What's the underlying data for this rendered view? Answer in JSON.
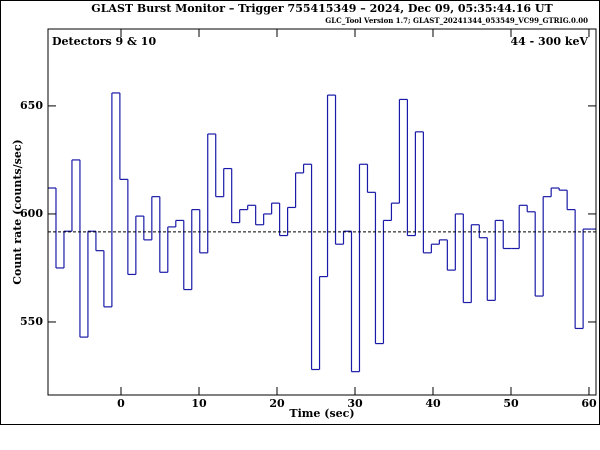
{
  "chart_data": {
    "type": "histogram",
    "title": "GLAST Burst Monitor  –  Trigger 755415349  –  2024, Dec 09, 05:35:44.16 UT",
    "subtitle": "GLC_Tool Version 1.7; GLAST_20241344_053549_VC99_GTRIG.0.00",
    "annotations": [
      "Detectors 9 & 10",
      "44 - 300 keV"
    ],
    "xlabel": "Time (sec)",
    "ylabel": "Count rate (counts/sec)",
    "color": "#1a1aa8",
    "background_level": 591.7,
    "bins": [
      -9.36,
      -8.336,
      -7.312,
      -6.288,
      -5.264,
      -4.24,
      -3.216,
      -2.192,
      -1.168,
      -0.144,
      0.88,
      1.904,
      2.928,
      3.952,
      4.976,
      6.0,
      7.024,
      8.048,
      9.072,
      10.096,
      11.12,
      12.144,
      13.168,
      14.192,
      15.216,
      16.24,
      17.264,
      18.288,
      19.312,
      20.336,
      21.36,
      22.384,
      23.408,
      24.432,
      25.456,
      26.48,
      27.504,
      28.528,
      29.552,
      30.576,
      31.6,
      32.624,
      33.648,
      34.672,
      35.696,
      36.72,
      37.744,
      38.768,
      39.792,
      40.816,
      41.84,
      42.864,
      43.888,
      44.912,
      45.936,
      46.96,
      47.984,
      49.008,
      50.032,
      51.056,
      52.08,
      53.104,
      54.128,
      55.152,
      56.176,
      57.2,
      58.224,
      59.248,
      60.272,
      61.296
    ],
    "values": [
      612,
      575,
      592,
      625,
      543,
      592,
      583,
      557,
      656,
      616,
      572,
      599,
      588,
      608,
      573,
      594,
      597,
      565,
      602,
      582,
      637,
      608,
      621,
      596,
      602,
      604,
      595,
      600,
      605,
      590,
      603,
      619,
      623,
      528,
      571,
      655,
      586,
      592,
      527,
      623,
      610,
      540,
      597,
      605,
      653,
      590,
      638,
      582,
      586,
      588,
      574,
      600,
      559,
      595,
      589,
      560,
      597,
      584,
      584,
      604,
      601,
      562,
      608,
      612,
      611,
      602,
      547,
      593,
      593
    ],
    "xlim": [
      -9.36,
      60.9
    ],
    "ylim": [
      516.2,
      685.6
    ],
    "xticks": [
      0,
      10,
      20,
      30,
      40,
      50,
      60
    ],
    "yticks": [
      550,
      600,
      650
    ]
  }
}
